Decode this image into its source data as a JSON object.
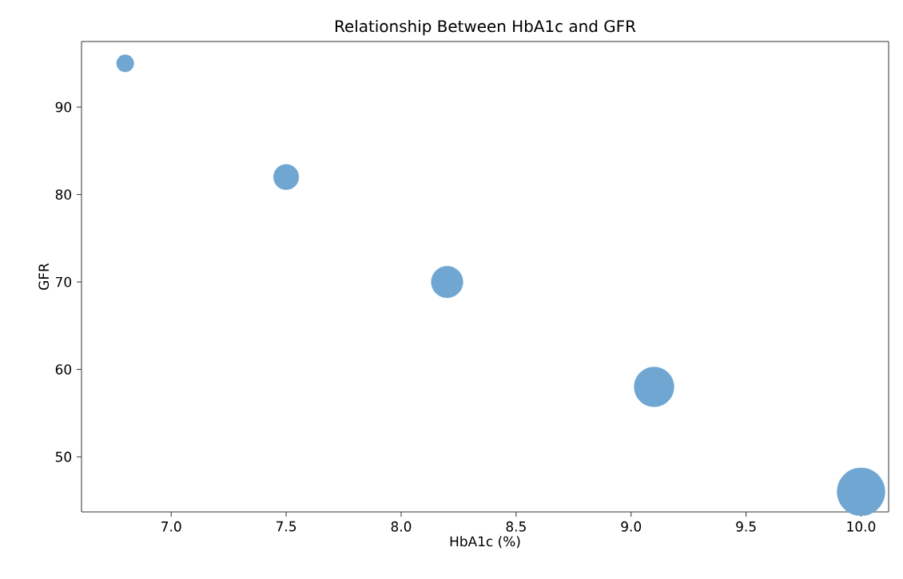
{
  "chart_data": {
    "type": "bubble",
    "title": "Relationship Between HbA1c and GFR",
    "xlabel": "HbA1c (%)",
    "ylabel": "GFR",
    "x": [
      6.8,
      7.5,
      8.2,
      9.1,
      10.0
    ],
    "values": [
      95,
      82,
      70,
      58,
      46
    ],
    "sizes": [
      0.13,
      0.28,
      0.44,
      0.69,
      1
    ],
    "color": "#6fa6d2",
    "xlim": [
      6.61,
      10.12
    ],
    "ylim": [
      43.7,
      97.5
    ],
    "xticks": [
      {
        "value": 7,
        "label": "7.0"
      },
      {
        "value": 7.5,
        "label": "7.5"
      },
      {
        "value": 8,
        "label": "8.0"
      },
      {
        "value": 8.5,
        "label": "8.5"
      },
      {
        "value": 9,
        "label": "9.0"
      },
      {
        "value": 9.5,
        "label": "9.5"
      },
      {
        "value": 10,
        "label": "10.0"
      }
    ],
    "yticks": [
      50,
      60,
      70,
      80,
      90
    ]
  }
}
